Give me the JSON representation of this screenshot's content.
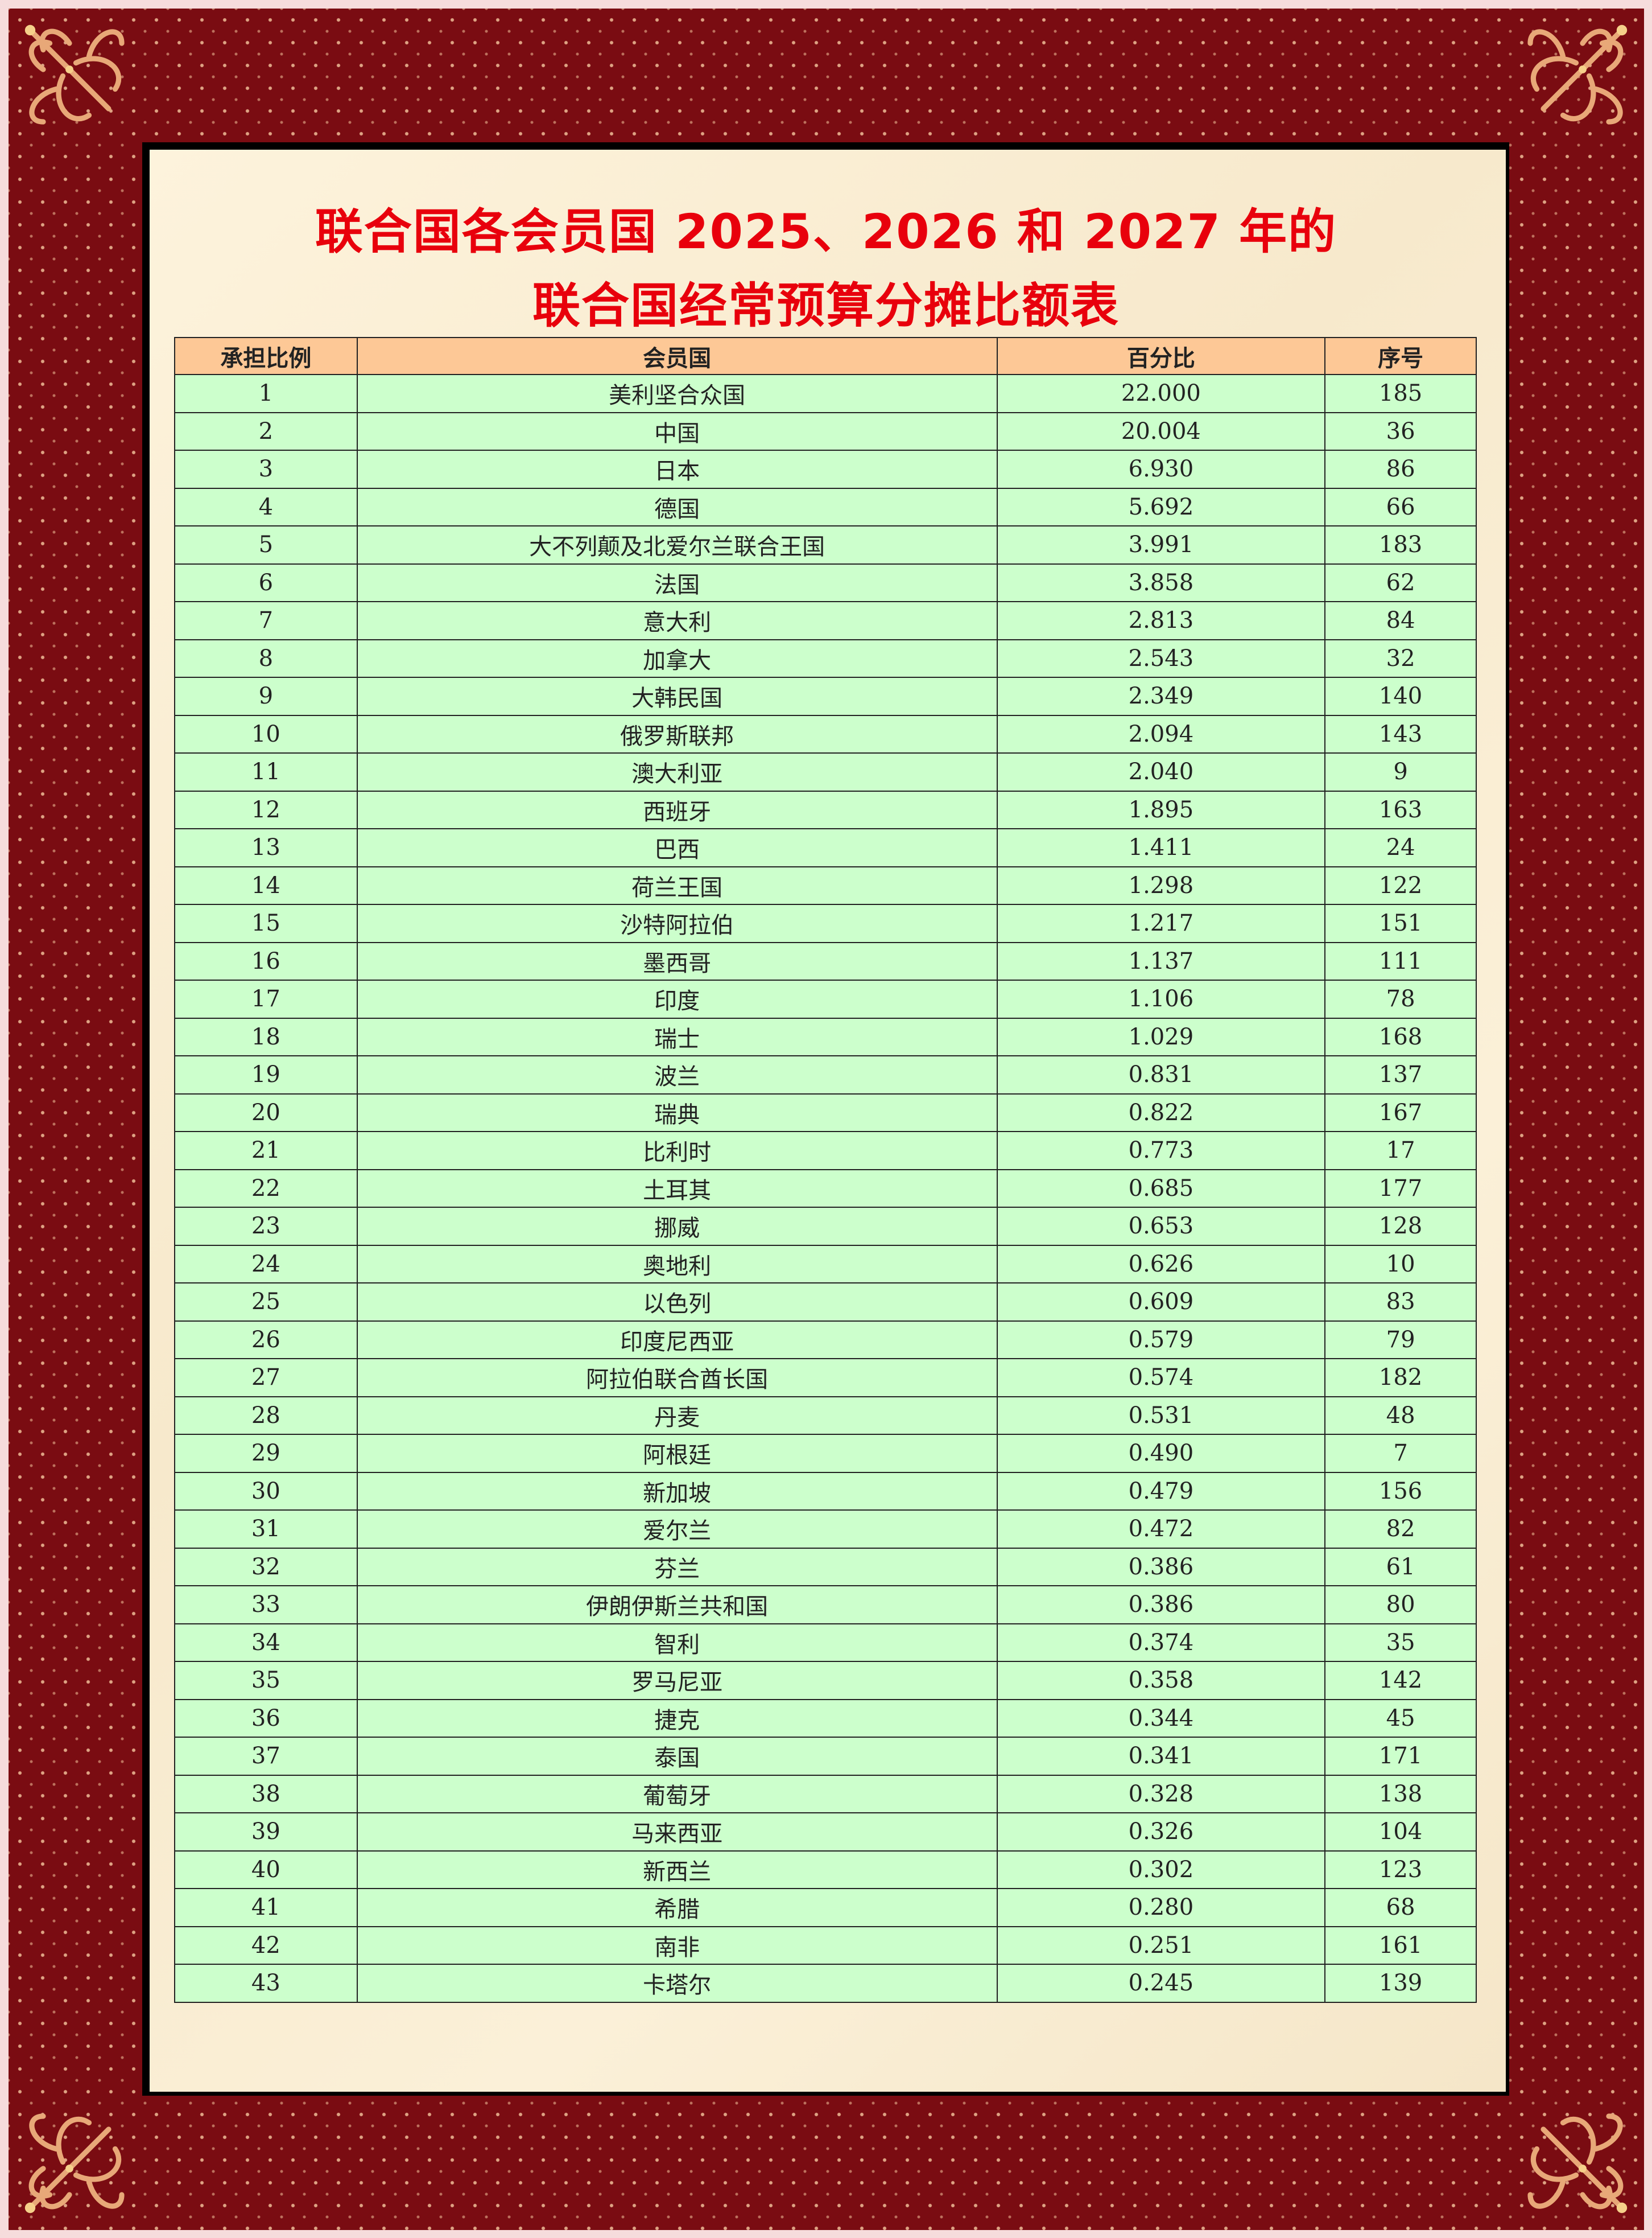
{
  "title": {
    "line1": "联合国各会员国 2025、2026 和 2027 年的",
    "line2": "联合国经常预算分摊比额表"
  },
  "colors": {
    "title": "#e8000c",
    "header_bg": "#fdc896",
    "row_bg": "#ccffcc",
    "frame": "#7a0c12",
    "panel": "#fbf0d8"
  },
  "table": {
    "headers": [
      "承担比例",
      "会员国",
      "百分比",
      "序号"
    ],
    "rows": [
      [
        "1",
        "美利坚合众国",
        "22.000",
        "185"
      ],
      [
        "2",
        "中国",
        "20.004",
        "36"
      ],
      [
        "3",
        "日本",
        "6.930",
        "86"
      ],
      [
        "4",
        "德国",
        "5.692",
        "66"
      ],
      [
        "5",
        "大不列颠及北爱尔兰联合王国",
        "3.991",
        "183"
      ],
      [
        "6",
        "法国",
        "3.858",
        "62"
      ],
      [
        "7",
        "意大利",
        "2.813",
        "84"
      ],
      [
        "8",
        "加拿大",
        "2.543",
        "32"
      ],
      [
        "9",
        "大韩民国",
        "2.349",
        "140"
      ],
      [
        "10",
        "俄罗斯联邦",
        "2.094",
        "143"
      ],
      [
        "11",
        "澳大利亚",
        "2.040",
        "9"
      ],
      [
        "12",
        "西班牙",
        "1.895",
        "163"
      ],
      [
        "13",
        "巴西",
        "1.411",
        "24"
      ],
      [
        "14",
        "荷兰王国",
        "1.298",
        "122"
      ],
      [
        "15",
        "沙特阿拉伯",
        "1.217",
        "151"
      ],
      [
        "16",
        "墨西哥",
        "1.137",
        "111"
      ],
      [
        "17",
        "印度",
        "1.106",
        "78"
      ],
      [
        "18",
        "瑞士",
        "1.029",
        "168"
      ],
      [
        "19",
        "波兰",
        "0.831",
        "137"
      ],
      [
        "20",
        "瑞典",
        "0.822",
        "167"
      ],
      [
        "21",
        "比利时",
        "0.773",
        "17"
      ],
      [
        "22",
        "土耳其",
        "0.685",
        "177"
      ],
      [
        "23",
        "挪威",
        "0.653",
        "128"
      ],
      [
        "24",
        "奥地利",
        "0.626",
        "10"
      ],
      [
        "25",
        "以色列",
        "0.609",
        "83"
      ],
      [
        "26",
        "印度尼西亚",
        "0.579",
        "79"
      ],
      [
        "27",
        "阿拉伯联合酋长国",
        "0.574",
        "182"
      ],
      [
        "28",
        "丹麦",
        "0.531",
        "48"
      ],
      [
        "29",
        "阿根廷",
        "0.490",
        "7"
      ],
      [
        "30",
        "新加坡",
        "0.479",
        "156"
      ],
      [
        "31",
        "爱尔兰",
        "0.472",
        "82"
      ],
      [
        "32",
        "芬兰",
        "0.386",
        "61"
      ],
      [
        "33",
        "伊朗伊斯兰共和国",
        "0.386",
        "80"
      ],
      [
        "34",
        "智利",
        "0.374",
        "35"
      ],
      [
        "35",
        "罗马尼亚",
        "0.358",
        "142"
      ],
      [
        "36",
        "捷克",
        "0.344",
        "45"
      ],
      [
        "37",
        "泰国",
        "0.341",
        "171"
      ],
      [
        "38",
        "葡萄牙",
        "0.328",
        "138"
      ],
      [
        "39",
        "马来西亚",
        "0.326",
        "104"
      ],
      [
        "40",
        "新西兰",
        "0.302",
        "123"
      ],
      [
        "41",
        "希腊",
        "0.280",
        "68"
      ],
      [
        "42",
        "南非",
        "0.251",
        "161"
      ],
      [
        "43",
        "卡塔尔",
        "0.245",
        "139"
      ]
    ]
  }
}
